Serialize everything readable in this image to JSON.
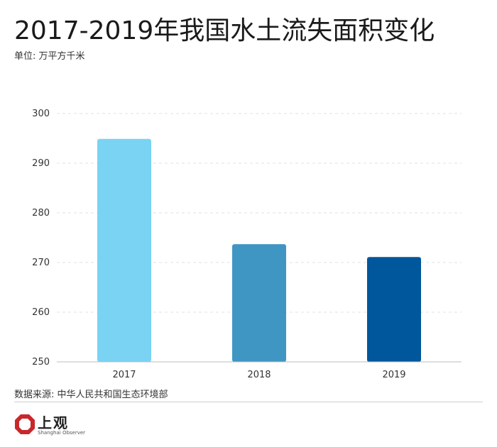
{
  "header": {
    "title": "2017-2019年我国水土流失面积变化",
    "unit": "单位: 万平方千米"
  },
  "footer": {
    "source": "数据来源: 中华人民共和国生态环境部",
    "logo_text": "上观",
    "logo_sub": "Shanghai Observer"
  },
  "colors": {
    "bar_2017": "#7ad3f3",
    "bar_2018": "#4096c3",
    "bar_2019": "#00579b",
    "logo_red": "#c8282b"
  },
  "chart_data": {
    "type": "bar",
    "title": "2017-2019年我国水土流失面积变化",
    "xlabel": "",
    "ylabel": "",
    "categories": [
      "2017",
      "2018",
      "2019"
    ],
    "values": [
      294.9,
      273.7,
      271.1
    ],
    "ylim": [
      250,
      300
    ],
    "yticks": [
      250,
      260,
      270,
      280,
      290,
      300
    ],
    "grid": true,
    "legend": "none"
  }
}
